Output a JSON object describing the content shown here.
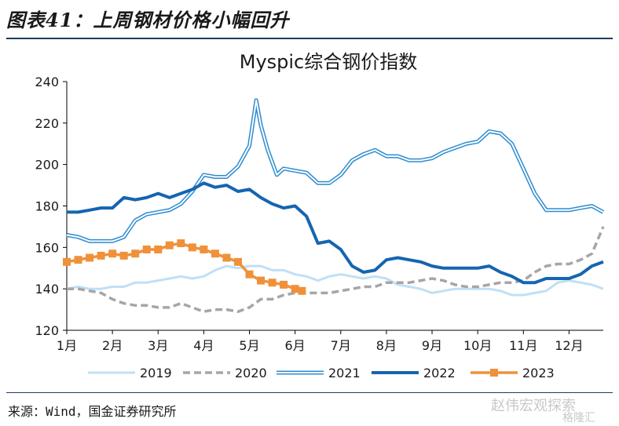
{
  "header": {
    "figure_title": "图表41：上周钢材价格小幅回升"
  },
  "footer": {
    "source": "来源：Wind，国金证券研究所"
  },
  "watermark": {
    "text1": "赵伟宏观探索",
    "text2": "格隆汇"
  },
  "chart_data": {
    "type": "line",
    "title": "Myspic综合钢价指数",
    "xlabel": "",
    "ylabel": "",
    "ylim": [
      120,
      240
    ],
    "yticks": [
      120,
      140,
      160,
      180,
      200,
      220,
      240
    ],
    "xticks": [
      "1月",
      "2月",
      "3月",
      "4月",
      "5月",
      "6月",
      "7月",
      "8月",
      "9月",
      "10月",
      "11月",
      "12月"
    ],
    "xlim": [
      1,
      12.75
    ],
    "legend_position": "bottom",
    "grid": false,
    "series": [
      {
        "name": "2019",
        "color": "#bfe0f5",
        "style": "solid",
        "x": [
          1.0,
          1.25,
          1.5,
          1.75,
          2.0,
          2.25,
          2.5,
          2.75,
          3.0,
          3.25,
          3.5,
          3.75,
          4.0,
          4.25,
          4.5,
          4.75,
          5.0,
          5.25,
          5.5,
          5.75,
          6.0,
          6.25,
          6.5,
          6.75,
          7.0,
          7.25,
          7.5,
          7.75,
          8.0,
          8.25,
          8.5,
          8.75,
          9.0,
          9.25,
          9.5,
          9.75,
          10.0,
          10.25,
          10.5,
          10.75,
          11.0,
          11.25,
          11.5,
          11.75,
          12.0,
          12.25,
          12.5,
          12.75
        ],
        "values": [
          140,
          141,
          140,
          140,
          141,
          141,
          143,
          143,
          144,
          145,
          146,
          145,
          146,
          149,
          151,
          150,
          151,
          151,
          149,
          149,
          147,
          146,
          144,
          146,
          147,
          146,
          145,
          146,
          145,
          142,
          141,
          140,
          138,
          139,
          140,
          140,
          140,
          140,
          139,
          137,
          137,
          138,
          139,
          143,
          144,
          143,
          142,
          140
        ]
      },
      {
        "name": "2020",
        "color": "#a6a6a6",
        "style": "dashed",
        "x": [
          1.0,
          1.25,
          1.5,
          1.75,
          2.0,
          2.25,
          2.5,
          2.75,
          3.0,
          3.25,
          3.5,
          3.75,
          4.0,
          4.25,
          4.5,
          4.75,
          5.0,
          5.25,
          5.5,
          5.75,
          6.0,
          6.25,
          6.5,
          6.75,
          7.0,
          7.25,
          7.5,
          7.75,
          8.0,
          8.25,
          8.5,
          8.75,
          9.0,
          9.25,
          9.5,
          9.75,
          10.0,
          10.25,
          10.5,
          10.75,
          11.0,
          11.25,
          11.5,
          11.75,
          12.0,
          12.25,
          12.5,
          12.75
        ],
        "values": [
          140,
          140,
          139,
          138,
          135,
          133,
          132,
          132,
          131,
          131,
          133,
          131,
          129,
          130,
          130,
          129,
          131,
          135,
          135,
          137,
          138,
          138,
          138,
          138,
          139,
          140,
          141,
          141,
          143,
          143,
          143,
          144,
          145,
          144,
          142,
          141,
          141,
          142,
          143,
          143,
          144,
          148,
          151,
          152,
          152,
          154,
          157,
          170
        ]
      },
      {
        "name": "2021",
        "color": "#2e8ccf",
        "style": "double",
        "x": [
          1.0,
          1.25,
          1.5,
          1.75,
          2.0,
          2.25,
          2.5,
          2.75,
          3.0,
          3.25,
          3.5,
          3.75,
          4.0,
          4.25,
          4.5,
          4.75,
          5.0,
          5.15,
          5.25,
          5.4,
          5.6,
          5.75,
          6.0,
          6.25,
          6.5,
          6.75,
          7.0,
          7.25,
          7.5,
          7.75,
          8.0,
          8.25,
          8.5,
          8.75,
          9.0,
          9.25,
          9.5,
          9.75,
          10.0,
          10.25,
          10.5,
          10.75,
          11.0,
          11.25,
          11.5,
          11.75,
          12.0,
          12.25,
          12.5,
          12.75
        ],
        "values": [
          166,
          165,
          163,
          163,
          163,
          165,
          173,
          176,
          177,
          178,
          181,
          187,
          195,
          194,
          194,
          199,
          209,
          231,
          219,
          207,
          195,
          198,
          197,
          196,
          191,
          191,
          195,
          202,
          205,
          207,
          204,
          204,
          202,
          202,
          203,
          206,
          208,
          210,
          211,
          216,
          215,
          210,
          198,
          186,
          178,
          178,
          178,
          179,
          180,
          177
        ]
      },
      {
        "name": "2022",
        "color": "#1565b0",
        "style": "solid",
        "x": [
          1.0,
          1.25,
          1.5,
          1.75,
          2.0,
          2.25,
          2.5,
          2.75,
          3.0,
          3.25,
          3.5,
          3.75,
          4.0,
          4.25,
          4.5,
          4.75,
          5.0,
          5.25,
          5.5,
          5.75,
          6.0,
          6.25,
          6.5,
          6.75,
          7.0,
          7.25,
          7.5,
          7.75,
          8.0,
          8.25,
          8.5,
          8.75,
          9.0,
          9.25,
          9.5,
          9.75,
          10.0,
          10.25,
          10.5,
          10.75,
          11.0,
          11.25,
          11.5,
          11.75,
          12.0,
          12.25,
          12.5,
          12.75
        ],
        "values": [
          177,
          177,
          178,
          179,
          179,
          184,
          183,
          184,
          186,
          184,
          186,
          188,
          191,
          189,
          190,
          187,
          188,
          184,
          181,
          179,
          180,
          175,
          162,
          163,
          159,
          151,
          148,
          149,
          154,
          155,
          154,
          153,
          151,
          150,
          150,
          150,
          150,
          151,
          148,
          146,
          143,
          143,
          145,
          145,
          145,
          147,
          151,
          153
        ]
      },
      {
        "name": "2023",
        "color": "#f0913a",
        "style": "marker",
        "x": [
          1.0,
          1.25,
          1.5,
          1.75,
          2.0,
          2.25,
          2.5,
          2.75,
          3.0,
          3.25,
          3.5,
          3.75,
          4.0,
          4.25,
          4.5,
          4.75,
          5.0,
          5.25,
          5.5,
          5.75,
          6.0,
          6.15
        ],
        "values": [
          153,
          154,
          155,
          156,
          157,
          156,
          157,
          159,
          159,
          161,
          162,
          160,
          159,
          157,
          155,
          153,
          147,
          144,
          143,
          142,
          140,
          139
        ]
      }
    ]
  }
}
